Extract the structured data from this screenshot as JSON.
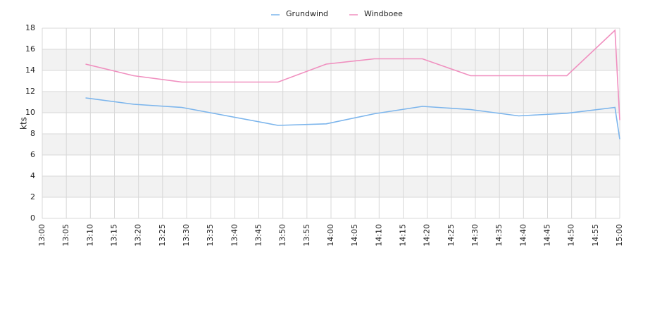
{
  "chart_data": {
    "type": "line",
    "y_label": "kts",
    "x": [
      "13:09",
      "13:19",
      "13:29",
      "13:49",
      "13:59",
      "14:09",
      "14:19",
      "14:29",
      "14:39",
      "14:49",
      "14:59",
      "15:00"
    ],
    "series": [
      {
        "name": "Grundwind",
        "color": "#7cb5ec",
        "values": [
          11.4,
          10.8,
          10.5,
          8.8,
          8.95,
          9.9,
          10.6,
          10.3,
          9.7,
          9.95,
          10.5,
          7.5
        ]
      },
      {
        "name": "Windboee",
        "color": "#f08fbf",
        "values": [
          14.6,
          13.5,
          12.9,
          12.9,
          14.6,
          15.1,
          15.1,
          13.5,
          13.5,
          13.5,
          17.8,
          9.3
        ]
      }
    ],
    "xlim": [
      "13:00",
      "15:00"
    ],
    "xticks": [
      "13:00",
      "13:05",
      "13:10",
      "13:15",
      "13:20",
      "13:25",
      "13:30",
      "13:35",
      "13:40",
      "13:45",
      "13:50",
      "13:55",
      "14:00",
      "14:05",
      "14:10",
      "14:15",
      "14:20",
      "14:25",
      "14:30",
      "14:35",
      "14:40",
      "14:45",
      "14:50",
      "14:55",
      "15:00"
    ],
    "ylim": [
      0,
      18
    ],
    "yticks": [
      0,
      2,
      4,
      6,
      8,
      10,
      12,
      14,
      16,
      18
    ],
    "grid": true,
    "legend": "top"
  }
}
